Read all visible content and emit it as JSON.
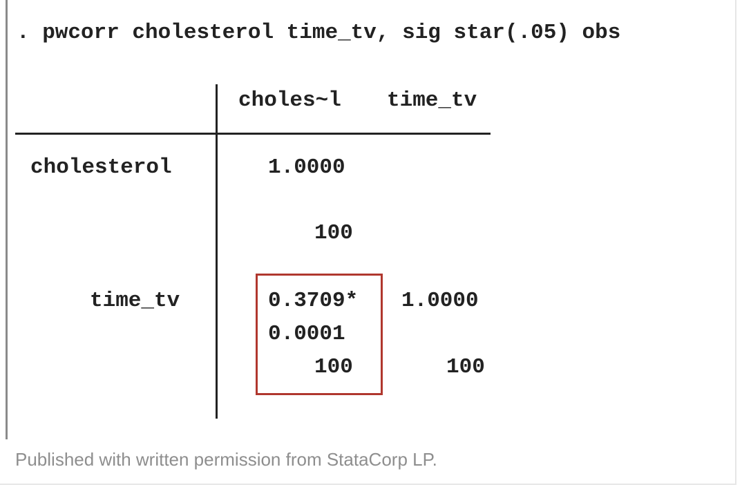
{
  "command": ". pwcorr cholesterol time_tv, sig star(.05) obs",
  "table": {
    "column_headers": [
      "choles~l",
      "time_tv"
    ],
    "rows": [
      {
        "label": "cholesterol",
        "corr": [
          "1.0000",
          ""
        ],
        "sig": [
          "",
          ""
        ],
        "obs": [
          "100",
          ""
        ]
      },
      {
        "label": "time_tv",
        "corr": [
          "0.3709*",
          "1.0000"
        ],
        "sig": [
          "0.0001",
          ""
        ],
        "obs": [
          "100",
          "100"
        ]
      }
    ]
  },
  "highlight_color": "#b0372e",
  "caption": "Published with written permission from StataCorp LP."
}
